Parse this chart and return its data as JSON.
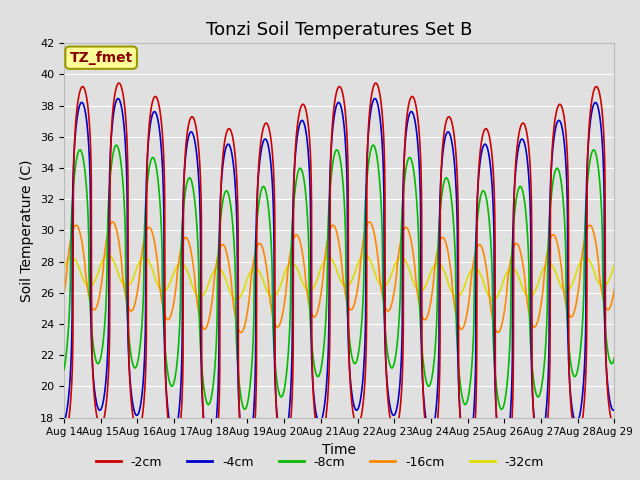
{
  "title": "Tonzi Soil Temperatures Set B",
  "xlabel": "Time",
  "ylabel": "Soil Temperature (C)",
  "annotation": "TZ_fmet",
  "ylim": [
    18,
    42
  ],
  "yticks": [
    18,
    20,
    22,
    24,
    26,
    28,
    30,
    32,
    34,
    36,
    38,
    40,
    42
  ],
  "n_days": 15,
  "x_tick_labels": [
    "Aug 14",
    "Aug 15",
    "Aug 16",
    "Aug 17",
    "Aug 18",
    "Aug 19",
    "Aug 20",
    "Aug 21",
    "Aug 22",
    "Aug 23",
    "Aug 24",
    "Aug 25",
    "Aug 26",
    "Aug 27",
    "Aug 28",
    "Aug 29"
  ],
  "series_colors": [
    "#cc0000",
    "#0000cc",
    "#00bb00",
    "#ff8800",
    "#dddd00"
  ],
  "series_labels": [
    "-2cm",
    "-4cm",
    "-8cm",
    "-16cm",
    "-32cm"
  ],
  "background_color": "#e0e0e0",
  "plot_bg_color": "#e0e0e0",
  "annotation_bg": "#ffff99",
  "annotation_border": "#999900",
  "annotation_text_color": "#880000",
  "grid_color": "#ffffff",
  "title_fontsize": 13,
  "axis_label_fontsize": 10,
  "tick_fontsize": 8,
  "legend_fontsize": 9,
  "line_width": 1.2,
  "pts_per_day": 144,
  "mean_base": 27.0,
  "amp_0": 11.0,
  "amp_1": 10.0,
  "amp_2": 7.0,
  "amp_3": 2.8,
  "amp_4": 1.0,
  "phase_0": 0.0,
  "phase_1": 0.15,
  "phase_2": 0.45,
  "phase_3": 1.1,
  "phase_4": 1.9,
  "sharpness_0": 0.25,
  "sharpness_1": 0.3,
  "sharpness_2": 0.5,
  "sharpness_3": 0.8,
  "sharpness_4": 0.9,
  "long_amp": 1.5,
  "long_period": 7.0,
  "long_phase": 0.5
}
